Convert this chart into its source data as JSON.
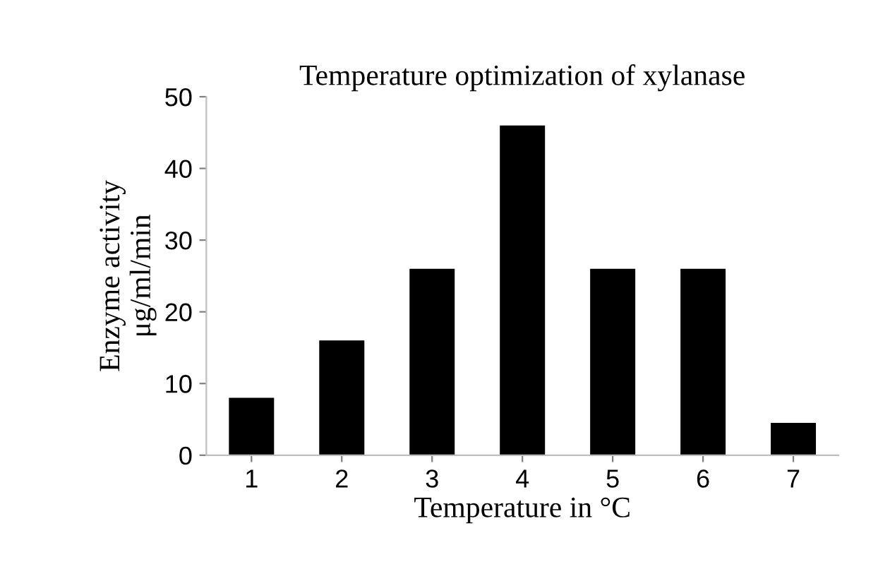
{
  "chart_data": {
    "type": "bar",
    "title": "Temperature optimization of xylanase",
    "xlabel": "Temperature in °C",
    "ylabel": "Enzyme activity\nμg/ml/min",
    "categories": [
      "1",
      "2",
      "3",
      "4",
      "5",
      "6",
      "7"
    ],
    "values": [
      8,
      16,
      26,
      46,
      26,
      26,
      4.5
    ],
    "color": "#000000",
    "ylim": [
      0,
      50
    ],
    "yticks": [
      0,
      10,
      20,
      30,
      40,
      50
    ],
    "grid": false,
    "legend": false
  }
}
